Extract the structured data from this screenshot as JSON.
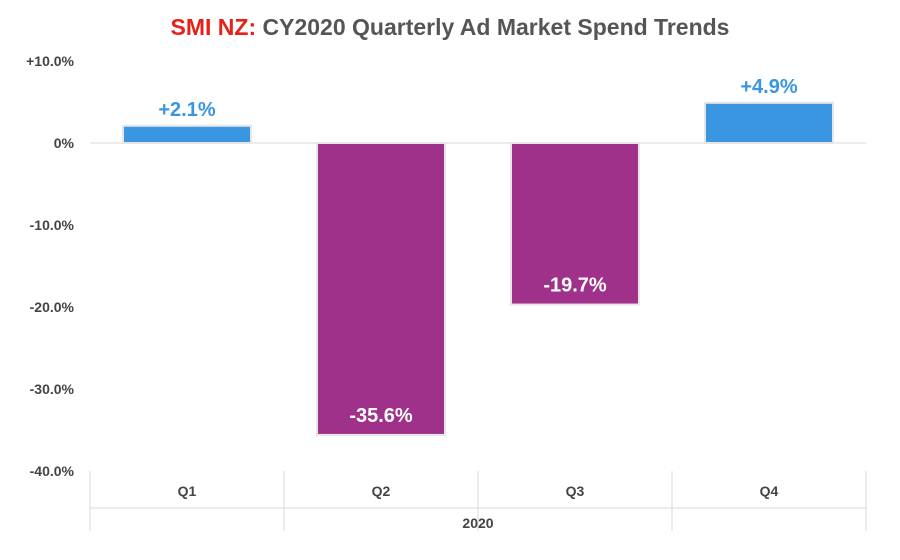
{
  "chart_data": {
    "type": "bar",
    "title_brand": "SMI NZ:",
    "title": "CY2020 Quarterly Ad Market Spend Trends",
    "categories": [
      "Q1",
      "Q2",
      "Q3",
      "Q4"
    ],
    "group_label": "2020",
    "values": [
      2.1,
      -35.6,
      -19.7,
      4.9
    ],
    "data_labels": [
      "+2.1%",
      "-35.6%",
      "-19.7%",
      "+4.9%"
    ],
    "y_ticks": [
      {
        "value": 10,
        "label": "+10.0%"
      },
      {
        "value": 0,
        "label": "0%"
      },
      {
        "value": -10,
        "label": "-10.0%"
      },
      {
        "value": -20,
        "label": "-20.0%"
      },
      {
        "value": -30,
        "label": "-30.0%"
      },
      {
        "value": -40,
        "label": "-40.0%"
      }
    ],
    "ylim": [
      -40,
      10
    ],
    "colors": {
      "positive": "#3a96e0",
      "negative": "#a0318b",
      "positive_label": "#3a96e0",
      "negative_label": "#ffffff",
      "brand": "#e8201a",
      "title": "#555555",
      "axis_text": "#444444"
    }
  }
}
